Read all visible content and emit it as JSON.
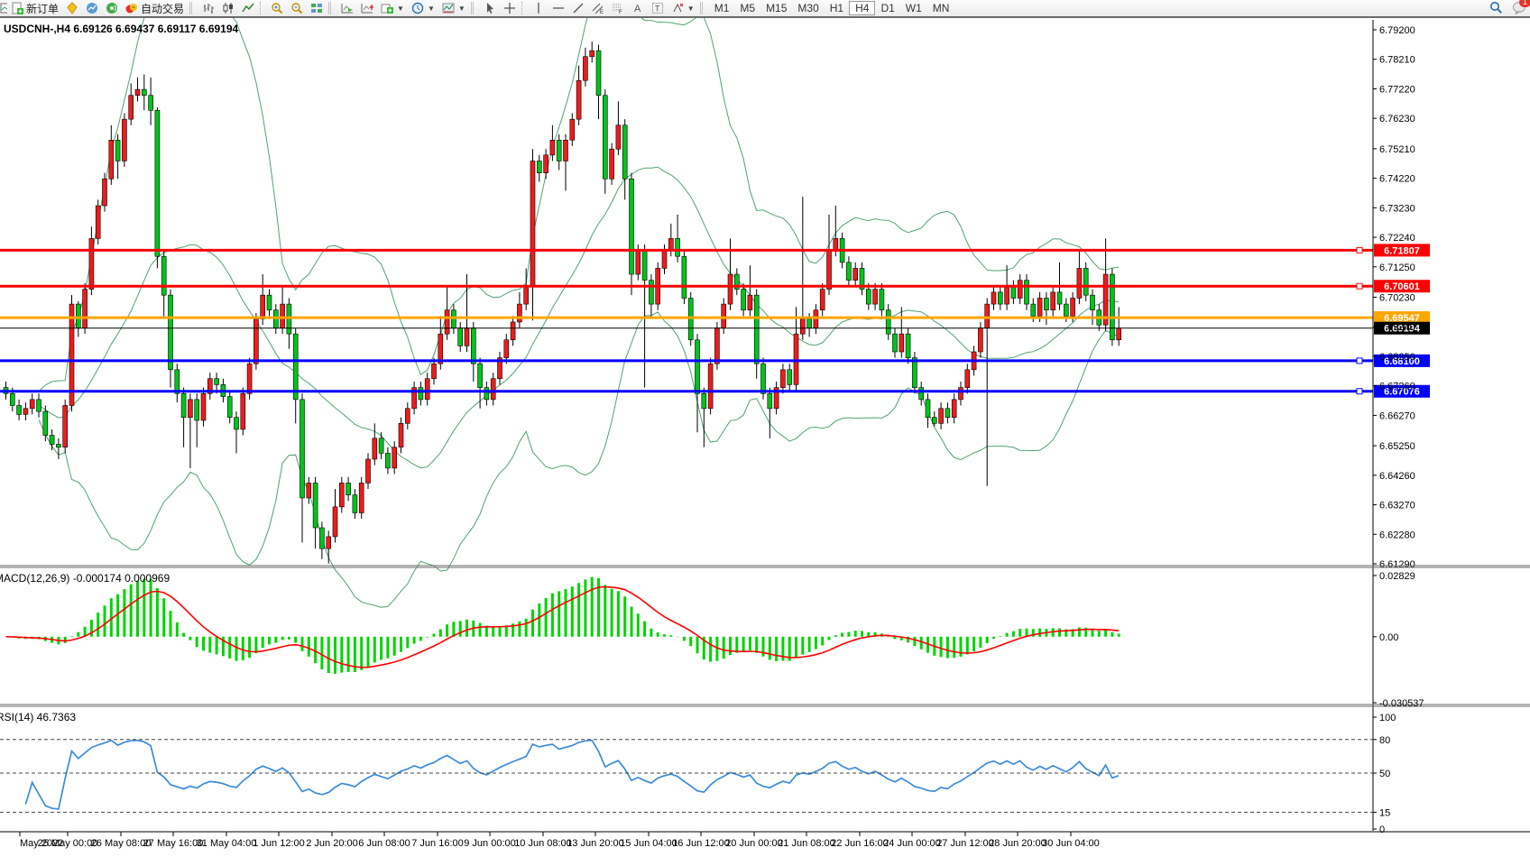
{
  "toolbar": {
    "new_order_label": "新订单",
    "autotrading_label": "自动交易",
    "timeframes": [
      "M1",
      "M5",
      "M15",
      "M30",
      "H1",
      "H4",
      "D1",
      "W1",
      "MN"
    ],
    "active_timeframe": "H4",
    "notification_count": "1"
  },
  "chart": {
    "title": "USDCNH-,H4  6.69126 6.69437 6.69117 6.69194",
    "symbol": "USDCNH-",
    "period": "H4",
    "ohlc": {
      "open": "6.69126",
      "high": "6.69437",
      "low": "6.69117",
      "close": "6.69194"
    }
  },
  "indicators": {
    "macd_label": "MACD(12,26,9) -0.000174 0.000969",
    "rsi_label": "RSI(14) 46.7363"
  },
  "chart_data": {
    "type": "candlestick",
    "symbol": "USDCNH-",
    "timeframe": "H4",
    "colors": {
      "bull": "#ee1c1c",
      "bear": "#00c41c",
      "wick": "#000000",
      "outline": "#000000",
      "bollinger": "#4ea46c",
      "macd_hist": "#00d400",
      "macd_signal": "#ff0000",
      "rsi_line": "#3c8bd8",
      "axis_text": "#000000"
    },
    "price_axis_ticks": [
      "6.79200",
      "6.78210",
      "6.77220",
      "6.76230",
      "6.75210",
      "6.74220",
      "6.73230",
      "6.72240",
      "6.71250",
      "6.70230",
      "6.69240",
      "6.68250",
      "6.67260",
      "6.66270",
      "6.65250",
      "6.64260",
      "6.63270",
      "6.62280",
      "6.61290"
    ],
    "levels": [
      {
        "price": 6.71807,
        "label": "6.71807",
        "color": "#ff0000",
        "width": 3,
        "handle": true
      },
      {
        "price": 6.70601,
        "label": "6.70601",
        "color": "#ff0000",
        "width": 3,
        "handle": true
      },
      {
        "price": 6.69547,
        "label": "6.69547",
        "color": "#ffa500",
        "width": 3,
        "handle": false
      },
      {
        "price": 6.69194,
        "label": "6.69194",
        "color": "#000000",
        "width": 1,
        "handle": false,
        "current_price": true
      },
      {
        "price": 6.681,
        "label": "6.68100",
        "color": "#0000ff",
        "width": 3,
        "handle": true
      },
      {
        "price": 6.67076,
        "label": "6.67076",
        "color": "#0000ff",
        "width": 3,
        "handle": true
      }
    ],
    "bollinger": {
      "period": 20,
      "deviation": 2
    },
    "macd": {
      "fast": 12,
      "slow": 26,
      "signal": 9,
      "value": -0.000174,
      "signal_value": 0.000969,
      "axis_ticks": [
        {
          "v": 0.02829,
          "label": "0.02829"
        },
        {
          "v": 0,
          "label": "0.00"
        },
        {
          "v": -0.030537,
          "label": "-0.030537"
        }
      ]
    },
    "rsi": {
      "period": 14,
      "value": 46.7363,
      "axis_ticks": [
        100,
        80,
        50,
        15,
        0
      ],
      "dashed_levels": [
        80,
        50,
        15
      ],
      "range": [
        0,
        100
      ]
    },
    "time_axis": {
      "labels": [
        "May 2022",
        "25 May 00:00",
        "26 May 08:00",
        "27 May 16:00",
        "31 May 04:00",
        "1 Jun 12:00",
        "2 Jun 20:00",
        "6 Jun 08:00",
        "7 Jun 16:00",
        "9 Jun 00:00",
        "10 Jun 08:00",
        "13 Jun 20:00",
        "15 Jun 04:00",
        "16 Jun 12:00",
        "20 Jun 00:00",
        "21 Jun 08:00",
        "22 Jun 16:00",
        "24 Jun 00:00",
        "27 Jun 12:00",
        "28 Jun 20:00",
        "30 Jun 04:00"
      ],
      "x": [
        22,
        75,
        134,
        192,
        251,
        309,
        368,
        426,
        485,
        543,
        602,
        660,
        719,
        777,
        836,
        894,
        953,
        1011,
        1070,
        1128,
        1187
      ]
    },
    "candles": [
      [
        6.672,
        6.674,
        6.668,
        6.67
      ],
      [
        6.67,
        6.672,
        6.664,
        6.666
      ],
      [
        6.666,
        6.668,
        6.661,
        6.663
      ],
      [
        6.663,
        6.667,
        6.661,
        6.665
      ],
      [
        6.665,
        6.67,
        6.663,
        6.668
      ],
      [
        6.668,
        6.67,
        6.662,
        6.664
      ],
      [
        6.664,
        6.666,
        6.654,
        6.656
      ],
      [
        6.656,
        6.658,
        6.651,
        6.653
      ],
      [
        6.653,
        6.655,
        6.648,
        6.652
      ],
      [
        6.652,
        6.668,
        6.65,
        6.666
      ],
      [
        6.666,
        6.703,
        6.664,
        6.7
      ],
      [
        6.7,
        6.701,
        6.689,
        6.692
      ],
      [
        6.692,
        6.707,
        6.69,
        6.705
      ],
      [
        6.705,
        6.726,
        6.703,
        6.722
      ],
      [
        6.722,
        6.735,
        6.72,
        6.733
      ],
      [
        6.733,
        6.744,
        6.731,
        6.742
      ],
      [
        6.742,
        6.76,
        6.74,
        6.755
      ],
      [
        6.755,
        6.757,
        6.742,
        6.748
      ],
      [
        6.748,
        6.764,
        6.746,
        6.762
      ],
      [
        6.762,
        6.774,
        6.76,
        6.77
      ],
      [
        6.77,
        6.776,
        6.768,
        6.772
      ],
      [
        6.772,
        6.777,
        6.765,
        6.77
      ],
      [
        6.77,
        6.776,
        6.76,
        6.765
      ],
      [
        6.765,
        6.766,
        6.712,
        6.716
      ],
      [
        6.716,
        6.718,
        6.695,
        6.703
      ],
      [
        6.703,
        6.705,
        6.672,
        6.678
      ],
      [
        6.678,
        6.68,
        6.667,
        6.67
      ],
      [
        6.67,
        6.672,
        6.652,
        6.662
      ],
      [
        6.662,
        6.67,
        6.645,
        6.668
      ],
      [
        6.668,
        6.67,
        6.652,
        6.661
      ],
      [
        6.661,
        6.672,
        6.659,
        6.67
      ],
      [
        6.67,
        6.677,
        6.668,
        6.675
      ],
      [
        6.675,
        6.677,
        6.67,
        6.673
      ],
      [
        6.673,
        6.675,
        6.667,
        6.669
      ],
      [
        6.669,
        6.671,
        6.66,
        6.662
      ],
      [
        6.662,
        6.664,
        6.65,
        6.658
      ],
      [
        6.658,
        6.672,
        6.656,
        6.67
      ],
      [
        6.67,
        6.682,
        6.668,
        6.68
      ],
      [
        6.68,
        6.697,
        6.678,
        6.695
      ],
      [
        6.695,
        6.71,
        6.693,
        6.703
      ],
      [
        6.703,
        6.705,
        6.696,
        6.698
      ],
      [
        6.698,
        6.7,
        6.69,
        6.692
      ],
      [
        6.692,
        6.706,
        6.69,
        6.7
      ],
      [
        6.7,
        6.702,
        6.685,
        6.69
      ],
      [
        6.69,
        6.692,
        6.66,
        6.668
      ],
      [
        6.668,
        6.67,
        6.62,
        6.635
      ],
      [
        6.635,
        6.642,
        6.633,
        6.64
      ],
      [
        6.64,
        6.642,
        6.618,
        6.625
      ],
      [
        6.625,
        6.627,
        6.6145,
        6.618
      ],
      [
        6.618,
        6.624,
        6.613,
        6.622
      ],
      [
        6.622,
        6.638,
        6.62,
        6.632
      ],
      [
        6.632,
        6.642,
        6.63,
        6.64
      ],
      [
        6.64,
        6.642,
        6.634,
        6.636
      ],
      [
        6.636,
        6.638,
        6.628,
        6.63
      ],
      [
        6.63,
        6.642,
        6.628,
        6.64
      ],
      [
        6.64,
        6.65,
        6.638,
        6.648
      ],
      [
        6.648,
        6.66,
        6.646,
        6.655
      ],
      [
        6.655,
        6.657,
        6.648,
        6.65
      ],
      [
        6.65,
        6.652,
        6.643,
        6.645
      ],
      [
        6.645,
        6.654,
        6.643,
        6.652
      ],
      [
        6.652,
        6.662,
        6.65,
        6.66
      ],
      [
        6.66,
        6.667,
        6.658,
        6.665
      ],
      [
        6.665,
        6.674,
        6.663,
        6.672
      ],
      [
        6.672,
        6.674,
        6.666,
        6.668
      ],
      [
        6.668,
        6.677,
        6.666,
        6.675
      ],
      [
        6.675,
        6.682,
        6.673,
        6.68
      ],
      [
        6.68,
        6.696,
        6.678,
        6.69
      ],
      [
        6.69,
        6.706,
        6.688,
        6.698
      ],
      [
        6.698,
        6.7,
        6.69,
        6.692
      ],
      [
        6.692,
        6.694,
        6.684,
        6.686
      ],
      [
        6.686,
        6.71,
        6.684,
        6.692
      ],
      [
        6.692,
        6.694,
        6.674,
        6.68
      ],
      [
        6.68,
        6.682,
        6.665,
        6.672
      ],
      [
        6.672,
        6.674,
        6.666,
        6.668
      ],
      [
        6.668,
        6.677,
        6.666,
        6.675
      ],
      [
        6.675,
        6.684,
        6.673,
        6.682
      ],
      [
        6.682,
        6.69,
        6.68,
        6.688
      ],
      [
        6.688,
        6.696,
        6.686,
        6.694
      ],
      [
        6.694,
        6.704,
        6.692,
        6.7
      ],
      [
        6.7,
        6.712,
        6.698,
        6.706
      ],
      [
        6.706,
        6.752,
        6.6945,
        6.748
      ],
      [
        6.748,
        6.75,
        6.741,
        6.744
      ],
      [
        6.744,
        6.752,
        6.742,
        6.75
      ],
      [
        6.75,
        6.76,
        6.748,
        6.755
      ],
      [
        6.755,
        6.757,
        6.745,
        6.748
      ],
      [
        6.748,
        6.757,
        6.738,
        6.755
      ],
      [
        6.755,
        6.764,
        6.753,
        6.762
      ],
      [
        6.762,
        6.78,
        6.76,
        6.775
      ],
      [
        6.775,
        6.786,
        6.773,
        6.783
      ],
      [
        6.783,
        6.788,
        6.781,
        6.785
      ],
      [
        6.785,
        6.787,
        6.762,
        6.77
      ],
      [
        6.77,
        6.772,
        6.737,
        6.742
      ],
      [
        6.742,
        6.754,
        6.74,
        6.752
      ],
      [
        6.752,
        6.768,
        6.75,
        6.76
      ],
      [
        6.76,
        6.762,
        6.735,
        6.742
      ],
      [
        6.742,
        6.744,
        6.703,
        6.71
      ],
      [
        6.71,
        6.72,
        6.708,
        6.718
      ],
      [
        6.718,
        6.72,
        6.672,
        6.708
      ],
      [
        6.708,
        6.71,
        6.696,
        6.7
      ],
      [
        6.7,
        6.714,
        6.698,
        6.712
      ],
      [
        6.712,
        6.72,
        6.71,
        6.718
      ],
      [
        6.718,
        6.727,
        6.716,
        6.722
      ],
      [
        6.722,
        6.73,
        6.714,
        6.716
      ],
      [
        6.716,
        6.718,
        6.7,
        6.702
      ],
      [
        6.702,
        6.704,
        6.686,
        6.688
      ],
      [
        6.688,
        6.69,
        6.657,
        6.67
      ],
      [
        6.67,
        6.672,
        6.652,
        6.665
      ],
      [
        6.665,
        6.682,
        6.663,
        6.68
      ],
      [
        6.68,
        6.694,
        6.678,
        6.692
      ],
      [
        6.692,
        6.702,
        6.69,
        6.7
      ],
      [
        6.7,
        6.722,
        6.698,
        6.71
      ],
      [
        6.71,
        6.712,
        6.703,
        6.705
      ],
      [
        6.705,
        6.707,
        6.696,
        6.698
      ],
      [
        6.698,
        6.713,
        6.696,
        6.703
      ],
      [
        6.703,
        6.705,
        6.675,
        6.68
      ],
      [
        6.68,
        6.682,
        6.668,
        6.67
      ],
      [
        6.67,
        6.672,
        6.655,
        6.665
      ],
      [
        6.665,
        6.674,
        6.663,
        6.672
      ],
      [
        6.672,
        6.68,
        6.67,
        6.678
      ],
      [
        6.678,
        6.68,
        6.671,
        6.673
      ],
      [
        6.673,
        6.699,
        6.671,
        6.69
      ],
      [
        6.69,
        6.736,
        6.688,
        6.695
      ],
      [
        6.695,
        6.697,
        6.689,
        6.692
      ],
      [
        6.692,
        6.7,
        6.69,
        6.698
      ],
      [
        6.698,
        6.707,
        6.696,
        6.705
      ],
      [
        6.705,
        6.73,
        6.703,
        6.718
      ],
      [
        6.718,
        6.733,
        6.716,
        6.722
      ],
      [
        6.722,
        6.724,
        6.712,
        6.714
      ],
      [
        6.714,
        6.716,
        6.706,
        6.708
      ],
      [
        6.708,
        6.714,
        6.706,
        6.712
      ],
      [
        6.712,
        6.714,
        6.703,
        6.705
      ],
      [
        6.705,
        6.707,
        6.698,
        6.7
      ],
      [
        6.7,
        6.707,
        6.698,
        6.705
      ],
      [
        6.705,
        6.707,
        6.696,
        6.698
      ],
      [
        6.698,
        6.7,
        6.688,
        6.69
      ],
      [
        6.69,
        6.692,
        6.682,
        6.684
      ],
      [
        6.684,
        6.699,
        6.682,
        6.69
      ],
      [
        6.69,
        6.692,
        6.68,
        6.682
      ],
      [
        6.682,
        6.684,
        6.67,
        6.672
      ],
      [
        6.672,
        6.674,
        6.666,
        6.668
      ],
      [
        6.668,
        6.67,
        6.6585,
        6.662
      ],
      [
        6.662,
        6.664,
        6.659,
        6.66
      ],
      [
        6.66,
        6.667,
        6.658,
        6.665
      ],
      [
        6.665,
        6.667,
        6.66,
        6.662
      ],
      [
        6.662,
        6.67,
        6.66,
        6.668
      ],
      [
        6.668,
        6.674,
        6.666,
        6.672
      ],
      [
        6.672,
        6.68,
        6.67,
        6.678
      ],
      [
        6.678,
        6.686,
        6.676,
        6.684
      ],
      [
        6.684,
        6.694,
        6.682,
        6.692
      ],
      [
        6.692,
        6.702,
        6.639,
        6.7
      ],
      [
        6.7,
        6.706,
        6.698,
        6.704
      ],
      [
        6.704,
        6.706,
        6.698,
        6.7
      ],
      [
        6.7,
        6.713,
        6.698,
        6.706
      ],
      [
        6.706,
        6.708,
        6.7,
        6.702
      ],
      [
        6.702,
        6.71,
        6.7,
        6.708
      ],
      [
        6.708,
        6.71,
        6.698,
        6.7
      ],
      [
        6.7,
        6.702,
        6.694,
        6.696
      ],
      [
        6.696,
        6.704,
        6.694,
        6.702
      ],
      [
        6.702,
        6.704,
        6.693,
        6.698
      ],
      [
        6.698,
        6.706,
        6.696,
        6.704
      ],
      [
        6.704,
        6.714,
        6.698,
        6.7
      ],
      [
        6.7,
        6.702,
        6.694,
        6.696
      ],
      [
        6.696,
        6.704,
        6.694,
        6.702
      ],
      [
        6.702,
        6.718,
        6.7,
        6.712
      ],
      [
        6.712,
        6.714,
        6.701,
        6.703
      ],
      [
        6.703,
        6.705,
        6.693,
        6.698
      ],
      [
        6.698,
        6.7,
        6.691,
        6.693
      ],
      [
        6.693,
        6.722,
        6.691,
        6.71
      ],
      [
        6.71,
        6.712,
        6.686,
        6.688
      ],
      [
        6.688,
        6.699,
        6.686,
        6.6919
      ]
    ]
  }
}
